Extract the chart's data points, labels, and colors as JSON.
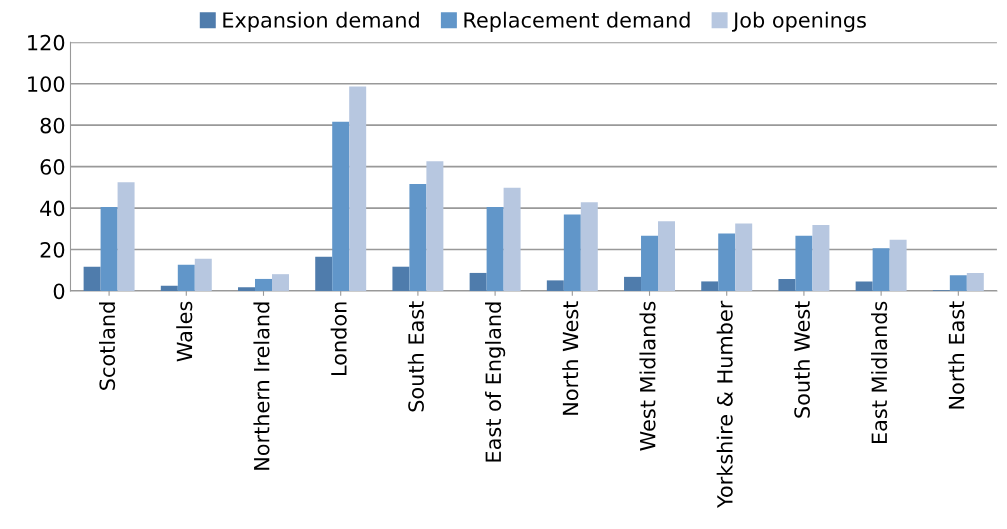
{
  "chart_data": {
    "type": "bar",
    "categories": [
      "Scotland",
      "Wales",
      "Northern Ireland",
      "London",
      "South East",
      "East of England",
      "North West",
      "West Midlands",
      "Yorkshire & Humber",
      "South West",
      "East Midlands",
      "North East"
    ],
    "series": [
      {
        "name": "Expansion demand",
        "color": "#4f7cac",
        "values": [
          11.7,
          2.5,
          1.8,
          16.5,
          11.7,
          8.7,
          5.1,
          6.8,
          4.6,
          5.8,
          4.6,
          0.3
        ]
      },
      {
        "name": "Replacement demand",
        "color": "#6196c9",
        "values": [
          40.5,
          12.7,
          5.8,
          81.7,
          51.6,
          40.5,
          36.9,
          26.7,
          27.7,
          26.7,
          20.6,
          7.6
        ]
      },
      {
        "name": "Job openings",
        "color": "#b7c7e0",
        "values": [
          52.5,
          15.5,
          8.1,
          98.7,
          62.6,
          49.8,
          42.8,
          33.6,
          32.6,
          31.8,
          24.7,
          8.7
        ]
      }
    ],
    "ylim": [
      0,
      120
    ],
    "yticks": [
      0,
      20,
      40,
      60,
      80,
      100,
      120
    ],
    "grid": "y",
    "legend": "top"
  }
}
